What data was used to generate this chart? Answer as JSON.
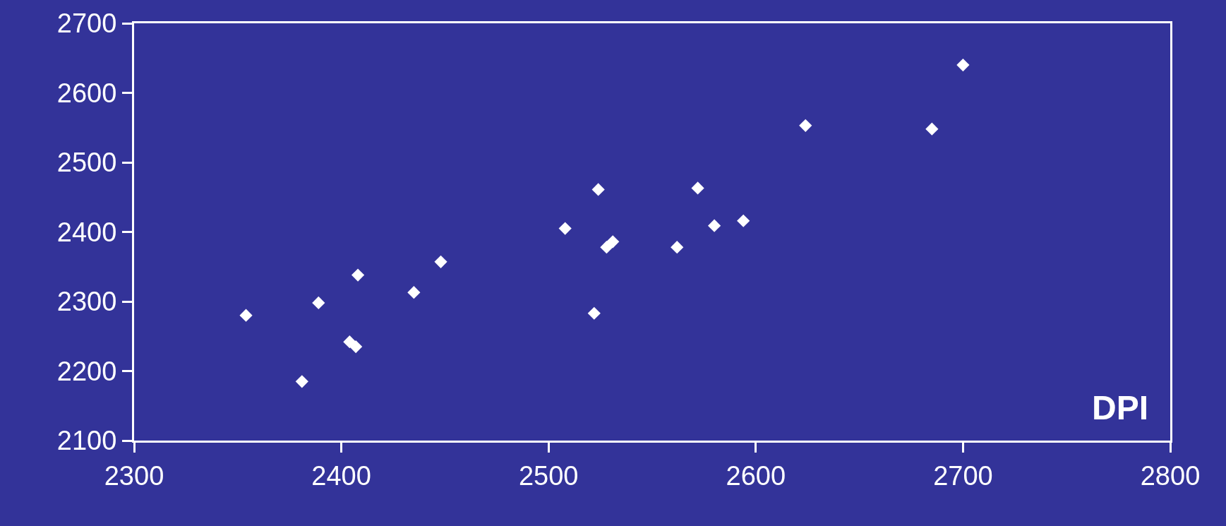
{
  "chart_data": {
    "type": "scatter",
    "xlabel": "DPI",
    "marker": "diamond",
    "grid": false,
    "x": [
      2354,
      2381,
      2389,
      2404,
      2407,
      2408,
      2435,
      2448,
      2508,
      2522,
      2524,
      2528,
      2531,
      2562,
      2572,
      2580,
      2594,
      2624,
      2685,
      2700
    ],
    "series": [
      {
        "color": "#ffffff",
        "values": [
          2280,
          2185,
          2298,
          2242,
          2235,
          2338,
          2313,
          2357,
          2405,
          2283,
          2461,
          2378,
          2386,
          2378,
          2463,
          2409,
          2416,
          2553,
          2548,
          2640
        ]
      }
    ],
    "xlim": [
      2300,
      2800
    ],
    "xticks": [
      2300,
      2400,
      2500,
      2600,
      2700,
      2800
    ],
    "ylim": [
      2100,
      2700
    ],
    "yticks": [
      2100,
      2200,
      2300,
      2400,
      2500,
      2600,
      2700
    ]
  }
}
